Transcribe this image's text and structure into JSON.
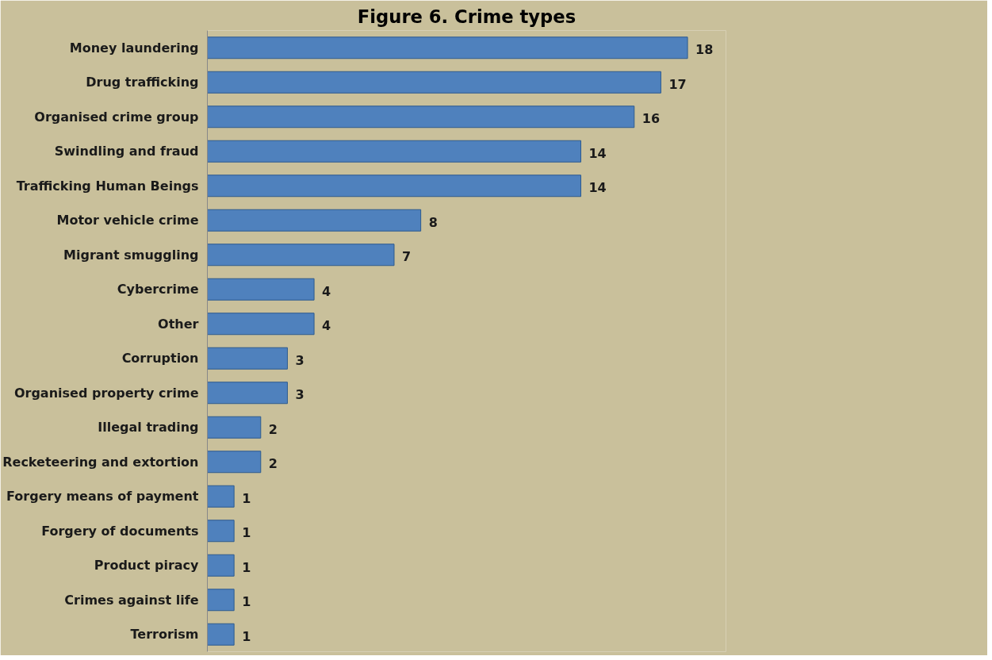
{
  "chart_data": {
    "type": "bar",
    "orientation": "horizontal",
    "title": "Figure 6. Crime types",
    "categories": [
      "Money laundering",
      "Drug trafficking",
      "Organised crime group",
      "Swindling and fraud",
      "Trafficking Human Beings",
      "Motor vehicle crime",
      "Migrant smuggling",
      "Cybercrime",
      "Other",
      "Corruption",
      "Organised property crime",
      "Illegal trading",
      "Recketeering and extortion",
      "Forgery means of payment",
      "Forgery of documents",
      "Product piracy",
      "Crimes against life",
      "Terrorism"
    ],
    "values": [
      18,
      17,
      16,
      14,
      14,
      8,
      7,
      4,
      4,
      3,
      3,
      2,
      2,
      1,
      1,
      1,
      1,
      1
    ],
    "color": "#4f81bd",
    "data_labels": true,
    "grid": false
  }
}
